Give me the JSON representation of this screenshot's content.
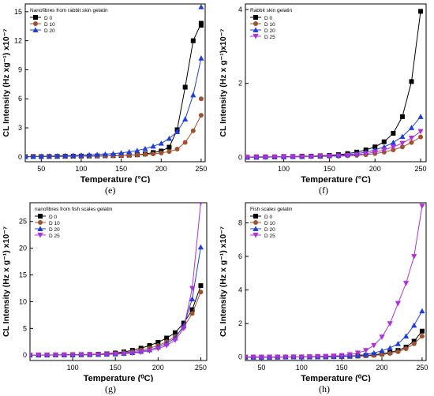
{
  "chart_data": [
    {
      "id": "e",
      "panel_label": "(e)",
      "type": "line",
      "title": "Nanofibres from rabbit skin gelatin",
      "xlabel": "Temperature (°C)",
      "ylabel": "CL Intensity (Hz xg⁻¹) x10⁻⁷",
      "xlim": [
        30,
        255
      ],
      "ylim": [
        -0.5,
        15.8
      ],
      "xticks": [
        50,
        100,
        150,
        200,
        250
      ],
      "yticks": [
        0,
        3,
        6,
        9,
        12,
        15
      ],
      "legend_position": "top-left",
      "series": [
        {
          "name": "D 0",
          "marker": "square",
          "color": "#000000",
          "x": [
            30,
            40,
            50,
            60,
            70,
            80,
            90,
            100,
            110,
            120,
            130,
            140,
            150,
            160,
            170,
            180,
            190,
            200,
            210,
            220,
            230,
            240,
            250
          ],
          "y": [
            0.02,
            0.03,
            0.03,
            0.04,
            0.05,
            0.06,
            0.07,
            0.08,
            0.09,
            0.1,
            0.11,
            0.13,
            0.15,
            0.18,
            0.22,
            0.3,
            0.45,
            0.6,
            1.0,
            2.8,
            7.2,
            12.0,
            13.8
          ]
        },
        {
          "name": "D 10",
          "marker": "circle",
          "color": "#a0522d",
          "x": [
            30,
            40,
            50,
            60,
            70,
            80,
            90,
            100,
            110,
            120,
            130,
            140,
            150,
            160,
            170,
            180,
            190,
            200,
            210,
            220,
            230,
            240,
            250
          ],
          "y": [
            0.02,
            0.02,
            0.03,
            0.03,
            0.04,
            0.05,
            0.06,
            0.07,
            0.08,
            0.09,
            0.1,
            0.12,
            0.14,
            0.17,
            0.2,
            0.25,
            0.3,
            0.4,
            0.55,
            0.8,
            1.5,
            2.7,
            4.3
          ]
        },
        {
          "name": "D 20",
          "marker": "triangle-up",
          "color": "#1f3fd8",
          "x": [
            30,
            40,
            50,
            60,
            70,
            80,
            90,
            100,
            110,
            120,
            130,
            140,
            150,
            160,
            170,
            180,
            190,
            200,
            210,
            220,
            230,
            240,
            250
          ],
          "y": [
            0.04,
            0.05,
            0.06,
            0.08,
            0.1,
            0.12,
            0.14,
            0.17,
            0.2,
            0.24,
            0.28,
            0.34,
            0.42,
            0.52,
            0.65,
            0.85,
            1.1,
            1.4,
            1.9,
            2.6,
            3.9,
            6.4,
            10.2
          ]
        }
      ],
      "extra_points": [
        {
          "series": "D 0",
          "x": 250,
          "y": 13.6
        },
        {
          "series": "D 10",
          "x": 250,
          "y": 6.0
        },
        {
          "series": "D 20",
          "x": 250,
          "y": 15.5
        }
      ]
    },
    {
      "id": "f",
      "panel_label": "(f)",
      "type": "line",
      "title": "Rabbit skin gelatin",
      "xlabel": "Temperature (°C)",
      "ylabel": "CL Intensity (Hz x g⁻¹)x10⁻⁷",
      "xlim": [
        58,
        256
      ],
      "ylim": [
        -0.12,
        4.15
      ],
      "xticks": [
        100,
        150,
        200,
        250
      ],
      "yticks": [
        0,
        2,
        4
      ],
      "legend_position": "top-left",
      "series": [
        {
          "name": "D 0",
          "marker": "square",
          "color": "#000000",
          "x": [
            60,
            70,
            80,
            90,
            100,
            110,
            120,
            130,
            140,
            150,
            160,
            170,
            180,
            190,
            200,
            210,
            220,
            230,
            240,
            250
          ],
          "y": [
            0.0,
            0.01,
            0.01,
            0.01,
            0.02,
            0.02,
            0.03,
            0.03,
            0.04,
            0.05,
            0.07,
            0.1,
            0.14,
            0.2,
            0.28,
            0.42,
            0.65,
            1.1,
            2.05,
            3.95
          ]
        },
        {
          "name": "D 10",
          "marker": "circle",
          "color": "#a0522d",
          "x": [
            60,
            70,
            80,
            90,
            100,
            110,
            120,
            130,
            140,
            150,
            160,
            170,
            180,
            190,
            200,
            210,
            220,
            230,
            240,
            250
          ],
          "y": [
            0.0,
            0.0,
            0.0,
            0.01,
            0.01,
            0.01,
            0.01,
            0.02,
            0.02,
            0.03,
            0.03,
            0.04,
            0.05,
            0.07,
            0.1,
            0.14,
            0.2,
            0.28,
            0.4,
            0.55
          ]
        },
        {
          "name": "D 20",
          "marker": "triangle-up",
          "color": "#1f3fd8",
          "x": [
            60,
            70,
            80,
            90,
            100,
            110,
            120,
            130,
            140,
            150,
            160,
            170,
            180,
            190,
            200,
            210,
            220,
            230,
            240,
            250
          ],
          "y": [
            0.0,
            0.0,
            0.01,
            0.01,
            0.01,
            0.02,
            0.02,
            0.03,
            0.03,
            0.04,
            0.05,
            0.07,
            0.1,
            0.14,
            0.2,
            0.28,
            0.4,
            0.56,
            0.8,
            1.1
          ]
        },
        {
          "name": "D 25",
          "marker": "triangle-down",
          "color": "#b030d8",
          "x": [
            60,
            70,
            80,
            90,
            100,
            110,
            120,
            130,
            140,
            150,
            160,
            170,
            180,
            190,
            200,
            210,
            220,
            230,
            240,
            250
          ],
          "y": [
            0.0,
            0.0,
            0.0,
            0.01,
            0.01,
            0.01,
            0.02,
            0.02,
            0.03,
            0.03,
            0.04,
            0.05,
            0.07,
            0.1,
            0.14,
            0.2,
            0.28,
            0.38,
            0.52,
            0.7
          ]
        }
      ]
    },
    {
      "id": "g",
      "panel_label": "(g)",
      "type": "line",
      "title": "nanofibres from fish scales gelatin",
      "xlabel": "Temperature (⁰C)",
      "ylabel": "CL Intensity (Hz x g⁻¹) x10⁻⁷",
      "xlim": [
        50,
        257
      ],
      "ylim": [
        -1,
        28.5
      ],
      "xticks": [
        100,
        150,
        200,
        250
      ],
      "yticks": [
        0,
        5,
        10,
        15,
        20,
        25
      ],
      "legend_position": "top-left",
      "series": [
        {
          "name": "D 0",
          "marker": "square",
          "color": "#000000",
          "x": [
            50,
            60,
            70,
            80,
            90,
            100,
            110,
            120,
            130,
            140,
            150,
            160,
            170,
            180,
            190,
            200,
            210,
            220,
            230,
            240,
            250
          ],
          "y": [
            0.02,
            0.03,
            0.04,
            0.05,
            0.06,
            0.08,
            0.1,
            0.13,
            0.18,
            0.25,
            0.4,
            0.6,
            0.9,
            1.3,
            1.8,
            2.4,
            3.2,
            4.2,
            6.0,
            8.5,
            13.0
          ]
        },
        {
          "name": "D 10",
          "marker": "circle",
          "color": "#a0522d",
          "x": [
            50,
            60,
            70,
            80,
            90,
            100,
            110,
            120,
            130,
            140,
            150,
            160,
            170,
            180,
            190,
            200,
            210,
            220,
            230,
            240,
            250
          ],
          "y": [
            0.01,
            0.02,
            0.03,
            0.04,
            0.05,
            0.06,
            0.08,
            0.1,
            0.14,
            0.2,
            0.3,
            0.45,
            0.65,
            0.95,
            1.3,
            1.8,
            2.5,
            3.5,
            5.2,
            7.8,
            11.8
          ]
        },
        {
          "name": "D 20",
          "marker": "triangle-up",
          "color": "#1f3fd8",
          "x": [
            50,
            60,
            70,
            80,
            90,
            100,
            110,
            120,
            130,
            140,
            150,
            160,
            170,
            180,
            190,
            200,
            210,
            220,
            230,
            240,
            250
          ],
          "y": [
            0.01,
            0.02,
            0.02,
            0.03,
            0.04,
            0.05,
            0.07,
            0.09,
            0.12,
            0.16,
            0.22,
            0.32,
            0.48,
            0.7,
            1.0,
            1.5,
            2.2,
            3.2,
            5.5,
            10.5,
            20.2
          ]
        },
        {
          "name": "D 25",
          "marker": "triangle-down",
          "color": "#b030d8",
          "x": [
            50,
            60,
            70,
            80,
            90,
            100,
            110,
            120,
            130,
            140,
            150,
            160,
            170,
            180,
            190,
            200,
            210,
            220,
            230,
            240,
            250
          ],
          "y": [
            0.01,
            0.01,
            0.02,
            0.02,
            0.03,
            0.04,
            0.05,
            0.07,
            0.1,
            0.13,
            0.18,
            0.26,
            0.38,
            0.55,
            0.8,
            1.2,
            1.8,
            2.8,
            5.0,
            12.5,
            28.5
          ]
        }
      ]
    },
    {
      "id": "h",
      "panel_label": "(h)",
      "type": "line",
      "title": "Fish scales gelatin",
      "xlabel": "Temperature (⁰C)",
      "ylabel": "CL Intensity (Hz x g⁻¹) x10⁻⁷",
      "xlim": [
        30,
        255
      ],
      "ylim": [
        -0.2,
        9.2
      ],
      "xticks": [
        50,
        100,
        150,
        200,
        250
      ],
      "yticks": [
        0,
        2,
        4,
        6,
        8
      ],
      "legend_position": "top-left",
      "series": [
        {
          "name": "D 0",
          "marker": "square",
          "color": "#000000",
          "x": [
            30,
            40,
            50,
            60,
            70,
            80,
            90,
            100,
            110,
            120,
            130,
            140,
            150,
            160,
            170,
            180,
            190,
            200,
            210,
            220,
            230,
            240,
            250
          ],
          "y": [
            0.0,
            0.0,
            0.0,
            0.0,
            0.0,
            0.01,
            0.01,
            0.01,
            0.01,
            0.02,
            0.02,
            0.03,
            0.04,
            0.05,
            0.07,
            0.1,
            0.14,
            0.2,
            0.28,
            0.4,
            0.6,
            0.95,
            1.55
          ]
        },
        {
          "name": "D 10",
          "marker": "circle",
          "color": "#a0522d",
          "x": [
            30,
            40,
            50,
            60,
            70,
            80,
            90,
            100,
            110,
            120,
            130,
            140,
            150,
            160,
            170,
            180,
            190,
            200,
            210,
            220,
            230,
            240,
            250
          ],
          "y": [
            0.0,
            0.0,
            0.0,
            0.0,
            0.0,
            0.0,
            0.01,
            0.01,
            0.01,
            0.01,
            0.02,
            0.02,
            0.03,
            0.04,
            0.05,
            0.07,
            0.1,
            0.15,
            0.22,
            0.32,
            0.5,
            0.8,
            1.25
          ]
        },
        {
          "name": "D 20",
          "marker": "triangle-up",
          "color": "#1f3fd8",
          "x": [
            30,
            40,
            50,
            60,
            70,
            80,
            90,
            100,
            110,
            120,
            130,
            140,
            150,
            160,
            170,
            180,
            190,
            200,
            210,
            220,
            230,
            240,
            250
          ],
          "y": [
            0.0,
            0.0,
            0.0,
            0.0,
            0.01,
            0.01,
            0.01,
            0.01,
            0.02,
            0.02,
            0.03,
            0.04,
            0.05,
            0.07,
            0.1,
            0.16,
            0.25,
            0.38,
            0.55,
            0.8,
            1.25,
            1.9,
            2.75
          ]
        },
        {
          "name": "D 25",
          "marker": "triangle-down",
          "color": "#b030d8",
          "x": [
            30,
            40,
            50,
            60,
            70,
            80,
            90,
            100,
            110,
            120,
            130,
            140,
            150,
            160,
            170,
            180,
            190,
            200,
            210,
            220,
            230,
            240,
            250
          ],
          "y": [
            0.0,
            0.0,
            0.0,
            0.01,
            0.01,
            0.01,
            0.02,
            0.02,
            0.03,
            0.04,
            0.05,
            0.07,
            0.1,
            0.15,
            0.25,
            0.4,
            0.7,
            1.2,
            2.0,
            3.2,
            4.4,
            6.0,
            9.0
          ]
        }
      ]
    }
  ]
}
